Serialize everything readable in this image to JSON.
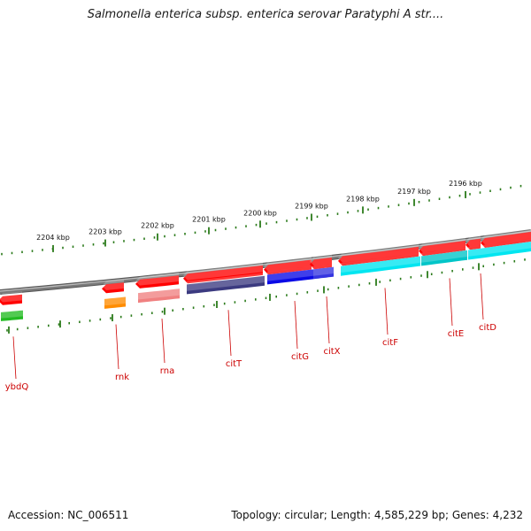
{
  "map": {
    "title": "Salmonella enterica subsp. enterica serovar Paratyphi A str....",
    "accession": "Accession: NC_006511",
    "topology": "Topology: circular; Length: 4,585,229 bp; Genes: 4,232",
    "colors": {
      "backbone": "#7a7a7a",
      "ruler": "#2a7a1a",
      "label_red": "#cc0000",
      "forward_gene": "#ff0000",
      "citT": "#3b3a80",
      "citG": "#0a0ae6",
      "citF": "#00e5f0",
      "citE": "#00c5c8",
      "rna": "#f08080",
      "rnk": "#ff8c00",
      "ybdQ": "#22bb22"
    },
    "kbp_ticks": [
      "2204 kbp",
      "2203 kbp",
      "2202 kbp",
      "2201 kbp",
      "2200 kbp",
      "2199 kbp",
      "2198 kbp",
      "2197 kbp",
      "2196 kbp"
    ],
    "genes": [
      "ybdQ",
      "rnk",
      "rna",
      "citT",
      "citG",
      "citX",
      "citF",
      "citE",
      "citD"
    ]
  }
}
